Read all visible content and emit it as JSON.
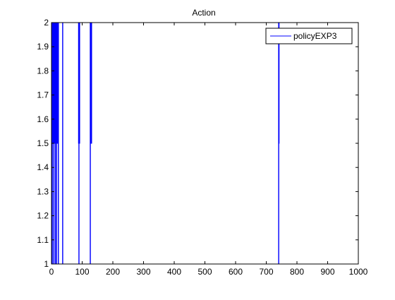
{
  "chart_data": {
    "type": "line",
    "title": "Action",
    "xlabel": "",
    "ylabel": "",
    "xlim": [
      0,
      1000
    ],
    "ylim": [
      1,
      2
    ],
    "xticks": [
      0,
      100,
      200,
      300,
      400,
      500,
      600,
      700,
      800,
      900,
      1000
    ],
    "yticks": [
      1,
      1.1,
      1.2,
      1.3,
      1.4,
      1.5,
      1.6,
      1.7,
      1.8,
      1.9,
      2
    ],
    "grid": false,
    "legend_position": "top-right",
    "series": [
      {
        "name": "policyEXP3",
        "color": "#0000ff",
        "points": [
          [
            1,
            1
          ],
          [
            1,
            2
          ],
          [
            2,
            2
          ],
          [
            2,
            1
          ],
          [
            3,
            1
          ],
          [
            3,
            2
          ],
          [
            5,
            2
          ],
          [
            5,
            1.5
          ],
          [
            6,
            1.5
          ],
          [
            6,
            2
          ],
          [
            7,
            2
          ],
          [
            7,
            1
          ],
          [
            8,
            1
          ],
          [
            8,
            2
          ],
          [
            10,
            2
          ],
          [
            10,
            1.5
          ],
          [
            11,
            1.5
          ],
          [
            11,
            2
          ],
          [
            12,
            2
          ],
          [
            12,
            1
          ],
          [
            13,
            1
          ],
          [
            13,
            2
          ],
          [
            14,
            2
          ],
          [
            14,
            1.5
          ],
          [
            15,
            1.5
          ],
          [
            15,
            2
          ],
          [
            16,
            2
          ],
          [
            16,
            1
          ],
          [
            17,
            1
          ],
          [
            17,
            2
          ],
          [
            18,
            2
          ],
          [
            18,
            1.5
          ],
          [
            19,
            1.5
          ],
          [
            19,
            2
          ],
          [
            20,
            2
          ],
          [
            20,
            1.5
          ],
          [
            21,
            1.5
          ],
          [
            21,
            2
          ],
          [
            22,
            2
          ],
          [
            22,
            1
          ],
          [
            23,
            1
          ],
          [
            23,
            2
          ],
          [
            36,
            2
          ],
          [
            36,
            1
          ],
          [
            37,
            1
          ],
          [
            37,
            2
          ],
          [
            88,
            2
          ],
          [
            88,
            1.5
          ],
          [
            89,
            1.5
          ],
          [
            89,
            1
          ],
          [
            90,
            1
          ],
          [
            90,
            2
          ],
          [
            91,
            2
          ],
          [
            91,
            1.5
          ],
          [
            92,
            1.5
          ],
          [
            92,
            2
          ],
          [
            126,
            2
          ],
          [
            126,
            1
          ],
          [
            127,
            1
          ],
          [
            127,
            2
          ],
          [
            128,
            2
          ],
          [
            128,
            1.5
          ],
          [
            129,
            1.5
          ],
          [
            129,
            2
          ],
          [
            130,
            2
          ],
          [
            130,
            1.5
          ],
          [
            131,
            1.5
          ],
          [
            131,
            2
          ],
          [
            740,
            2
          ],
          [
            740,
            1
          ],
          [
            741,
            1
          ],
          [
            741,
            1.5
          ],
          [
            742,
            1.5
          ],
          [
            742,
            2
          ],
          [
            1000,
            2
          ]
        ]
      }
    ]
  }
}
